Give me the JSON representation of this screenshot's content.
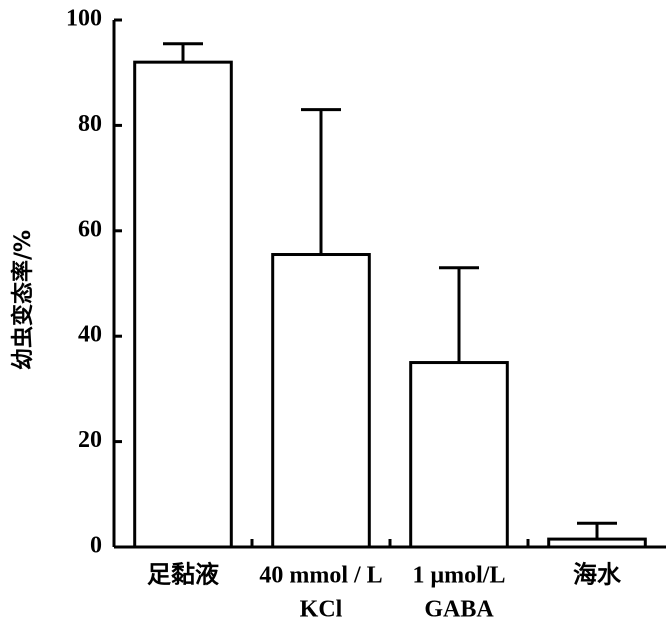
{
  "chart_data": {
    "type": "bar",
    "ylabel": "幼虫变态率/%",
    "categories": [
      [
        "足黏液"
      ],
      [
        "40 mmol / L",
        "KCl"
      ],
      [
        "1 μmol/L",
        "GABA"
      ],
      [
        "海水"
      ]
    ],
    "values": [
      92,
      55.5,
      35,
      1.5
    ],
    "errors": [
      3.5,
      27.5,
      18,
      3
    ],
    "color": "#ffffff",
    "edgecolor": "#000000",
    "ylim": [
      0,
      100
    ],
    "yticks": [
      0,
      20,
      40,
      60,
      80,
      100
    ],
    "grid": false
  }
}
